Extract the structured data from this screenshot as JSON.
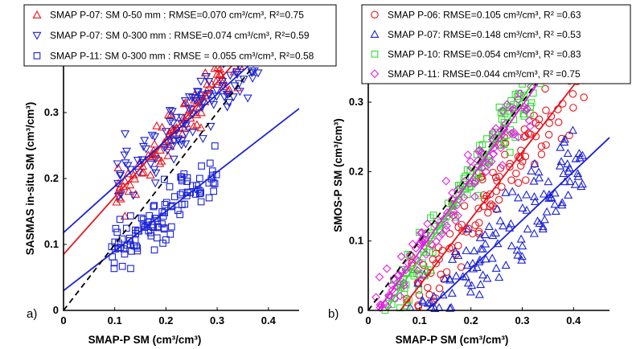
{
  "chart_data": [
    {
      "type": "scatter",
      "panel_label": "a)",
      "xlabel": "SMAP-P SM (cm³/cm³)",
      "ylabel": "SASMAS in-situ SM (cm³/cm³)",
      "xlim": [
        0,
        0.46
      ],
      "ylim": [
        0,
        0.4
      ],
      "x_ticks": [
        "0",
        "0.1",
        "0.2",
        "0.3",
        "0.4"
      ],
      "y_ticks": [
        "0",
        "0.1",
        "0.2",
        "0.3"
      ],
      "x_tick_values": [
        0,
        0.1,
        0.2,
        0.3,
        0.4
      ],
      "y_tick_values": [
        0,
        0.1,
        0.2,
        0.3
      ],
      "one_to_one_line": true,
      "grid": false,
      "legend_position": "top",
      "series": [
        {
          "name": "SMAP P-07: SM 0-50 mm : RMSE=0.070 cm³/cm³, R²=0.75",
          "color": "#e8131b",
          "marker": "triangle-up",
          "fit": {
            "intercept": 0.085,
            "slope": 0.87
          },
          "cloud": {
            "x_min": 0.1,
            "x_max": 0.39,
            "noise": 0.03
          }
        },
        {
          "name": "SMAP P-07: SM 0-300 mm : RMSE=0.074 cm³/cm³, R²=0.59",
          "color": "#1a22d4",
          "marker": "triangle-down",
          "fit": {
            "intercept": 0.118,
            "slope": 0.7
          },
          "cloud": {
            "x_min": 0.1,
            "x_max": 0.38,
            "noise": 0.04
          }
        },
        {
          "name": "SMAP P-11: SM 0-300 mm : RMSE = 0.055 cm³/cm³, R²=0.58",
          "color": "#1a22d4",
          "marker": "square",
          "fit": {
            "intercept": 0.03,
            "slope": 0.6
          },
          "cloud": {
            "x_min": 0.09,
            "x_max": 0.3,
            "noise": 0.035
          }
        }
      ]
    },
    {
      "type": "scatter",
      "panel_label": "b)",
      "xlabel": "SMAP-P SM (cm³/cm³)",
      "ylabel": "SMOS-P SM (cm³/cm³)",
      "xlim": [
        0,
        0.47
      ],
      "ylim": [
        0,
        0.38
      ],
      "x_ticks": [
        "0",
        "0.1",
        "0.2",
        "0.3",
        "0.4"
      ],
      "y_ticks": [
        "0",
        "0.1",
        "0.2",
        "0.3"
      ],
      "x_tick_values": [
        0,
        0.1,
        0.2,
        0.3,
        0.4
      ],
      "y_tick_values": [
        0,
        0.1,
        0.2,
        0.3
      ],
      "one_to_one_line": true,
      "grid": false,
      "legend_position": "top",
      "series": [
        {
          "name": "SMAP P-06: RMSE=0.105 cm³/cm³, R² =0.63",
          "color": "#e8131b",
          "marker": "circle",
          "fit": {
            "intercept": -0.06,
            "slope": 0.96
          },
          "cloud": {
            "x_min": 0.07,
            "x_max": 0.43,
            "noise": 0.05
          }
        },
        {
          "name": "SMAP P-07: RMSE=0.148 cm³/cm³, R² =0.53",
          "color": "#1a22d4",
          "marker": "triangle-up",
          "fit": {
            "intercept": -0.08,
            "slope": 0.7
          },
          "cloud": {
            "x_min": 0.08,
            "x_max": 0.42,
            "noise": 0.05
          }
        },
        {
          "name": "SMAP P-10: RMSE=0.054 cm³/cm³, R² =0.83",
          "color": "#33dd33",
          "marker": "square",
          "fit": {
            "intercept": -0.04,
            "slope": 1.15
          },
          "cloud": {
            "x_min": 0.03,
            "x_max": 0.34,
            "noise": 0.035
          }
        },
        {
          "name": "SMAP P-11: RMSE=0.044 cm³/cm³, R² =0.75",
          "color": "#e020e0",
          "marker": "diamond",
          "fit": {
            "intercept": -0.02,
            "slope": 1.05
          },
          "cloud": {
            "x_min": 0.0,
            "x_max": 0.32,
            "noise": 0.035
          }
        }
      ]
    }
  ]
}
